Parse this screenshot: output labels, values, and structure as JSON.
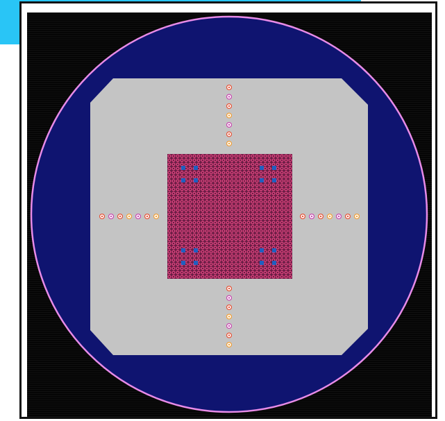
{
  "colors": {
    "tab": "#29c5f6",
    "field": "#050505",
    "wafer": "#0f1470",
    "wafer_edge": "#e88be8",
    "substrate": "#c4c4c4",
    "array_base": "#6a1d44",
    "bump": "#d2427a",
    "bump_core": "#4a1030",
    "corner_pad": "#1f5fc0",
    "marker_a": "#e4553a",
    "marker_b": "#f0a03a",
    "marker_c": "#c74ab0"
  },
  "array": {
    "rows": 30,
    "cols": 30
  },
  "corner_groups": {
    "per_group": 4
  },
  "markers": {
    "top": 7,
    "bottom": 7,
    "left": 7,
    "right": 7
  }
}
